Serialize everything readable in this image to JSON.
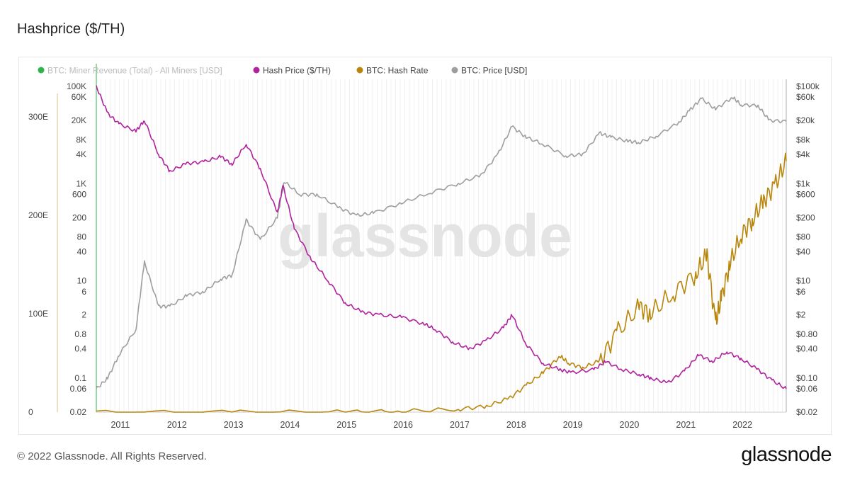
{
  "page": {
    "title": "Hashprice ($/TH)",
    "copyright": "© 2022 Glassnode. All Rights Reserved.",
    "logo": "glassnode",
    "watermark": "glassnode"
  },
  "chart_data": {
    "type": "line",
    "title": "Hashprice ($/TH)",
    "legend_position": "top-left",
    "grid": true,
    "x_ticks": [
      "2011",
      "2012",
      "2013",
      "2014",
      "2015",
      "2016",
      "2017",
      "2018",
      "2019",
      "2020",
      "2021",
      "2022"
    ],
    "x_range": [
      2010.6,
      2022.8
    ],
    "axes": {
      "left_outer": {
        "ticks": [
          "300E",
          "200E",
          "100E",
          "0"
        ],
        "values": [
          300,
          200,
          100,
          0
        ],
        "range": [
          0,
          338
        ]
      },
      "left_inner": {
        "ticks": [
          "100K",
          "60K",
          "20K",
          "8K",
          "4K",
          "1K",
          "600",
          "200",
          "80",
          "40",
          "10",
          "6",
          "2",
          "0.8",
          "0.4",
          "0.1",
          "0.06",
          "0.02"
        ],
        "values": [
          100000,
          60000,
          20000,
          8000,
          4000,
          1000,
          600,
          200,
          80,
          40,
          10,
          6,
          2,
          0.8,
          0.4,
          0.1,
          0.06,
          0.02
        ],
        "scale": "log",
        "range": [
          0.02,
          100000
        ]
      },
      "right": {
        "ticks": [
          "$100k",
          "$60k",
          "$20k",
          "$8k",
          "$4k",
          "$1k",
          "$600",
          "$200",
          "$80",
          "$40",
          "$10",
          "$6",
          "$2",
          "$0.80",
          "$0.40",
          "$0.10",
          "$0.06",
          "$0.02"
        ],
        "values": [
          100000,
          60000,
          20000,
          8000,
          4000,
          1000,
          600,
          200,
          80,
          40,
          10,
          6,
          2,
          0.8,
          0.4,
          0.1,
          0.06,
          0.02
        ],
        "scale": "log",
        "range": [
          0.02,
          100000
        ]
      }
    },
    "series": [
      {
        "name": "BTC: Miner Revenue (Total) - All Miners [USD]",
        "color": "#2db34a",
        "muted": true,
        "x": [],
        "y": []
      },
      {
        "name": "Hash Price ($/TH)",
        "color": "#b0229e",
        "axis": "left_inner",
        "x": [
          2010.6,
          2010.8,
          2011.0,
          2011.3,
          2011.45,
          2011.7,
          2011.9,
          2012.2,
          2012.5,
          2012.8,
          2013.0,
          2013.25,
          2013.5,
          2013.8,
          2013.9,
          2014.1,
          2014.4,
          2014.7,
          2015.0,
          2015.3,
          2015.6,
          2016.0,
          2016.4,
          2016.6,
          2016.9,
          2017.2,
          2017.5,
          2017.8,
          2017.95,
          2018.2,
          2018.5,
          2018.8,
          2019.0,
          2019.4,
          2019.6,
          2019.9,
          2020.2,
          2020.4,
          2020.7,
          2021.0,
          2021.25,
          2021.5,
          2021.75,
          2022.0,
          2022.3,
          2022.55,
          2022.8
        ],
        "y": [
          100000,
          28000,
          17000,
          12000,
          20000,
          4000,
          1800,
          2600,
          2800,
          3600,
          2500,
          6500,
          2000,
          250,
          900,
          120,
          28,
          10,
          3.5,
          2.3,
          2.0,
          1.8,
          1.3,
          1.0,
          0.55,
          0.4,
          0.6,
          1.1,
          2.0,
          0.5,
          0.2,
          0.15,
          0.13,
          0.15,
          0.22,
          0.15,
          0.12,
          0.1,
          0.08,
          0.14,
          0.3,
          0.22,
          0.35,
          0.25,
          0.15,
          0.09,
          0.06
        ]
      },
      {
        "name": "BTC: Hash Rate",
        "color": "#b8860b",
        "axis": "left_outer",
        "x": [
          2010.6,
          2013.0,
          2015.0,
          2016.0,
          2017.0,
          2017.5,
          2017.9,
          2018.2,
          2018.5,
          2018.8,
          2018.95,
          2019.2,
          2019.5,
          2019.8,
          2020.2,
          2020.4,
          2020.8,
          2021.2,
          2021.4,
          2021.55,
          2021.65,
          2021.8,
          2022.0,
          2022.2,
          2022.4,
          2022.6,
          2022.8
        ],
        "y": [
          0,
          0,
          0.3,
          1,
          3,
          6,
          14,
          27,
          40,
          57,
          50,
          45,
          52,
          80,
          107,
          100,
          121,
          140,
          160,
          90,
          115,
          150,
          180,
          195,
          215,
          230,
          255
        ]
      },
      {
        "name": "BTC: Price [USD]",
        "color": "#9e9e9e",
        "axis": "right",
        "x": [
          2010.6,
          2010.8,
          2011.0,
          2011.3,
          2011.45,
          2011.7,
          2011.9,
          2012.2,
          2012.5,
          2012.8,
          2013.0,
          2013.25,
          2013.5,
          2013.8,
          2013.92,
          2014.2,
          2014.5,
          2014.9,
          2015.2,
          2015.5,
          2016.0,
          2016.5,
          2017.0,
          2017.4,
          2017.7,
          2017.95,
          2018.2,
          2018.5,
          2018.9,
          2019.2,
          2019.5,
          2019.7,
          2020.0,
          2020.2,
          2020.5,
          2020.9,
          2021.1,
          2021.3,
          2021.55,
          2021.85,
          2022.0,
          2022.3,
          2022.5,
          2022.8
        ],
        "y": [
          0.06,
          0.1,
          0.3,
          1,
          25,
          3,
          3,
          5,
          6,
          11,
          13,
          180,
          70,
          200,
          1100,
          600,
          600,
          320,
          220,
          250,
          400,
          650,
          1000,
          1500,
          4000,
          15000,
          9000,
          6500,
          3700,
          4000,
          11000,
          9000,
          7500,
          7000,
          9500,
          18000,
          33000,
          56000,
          34000,
          60000,
          42000,
          40000,
          20000,
          19000
        ]
      }
    ]
  }
}
